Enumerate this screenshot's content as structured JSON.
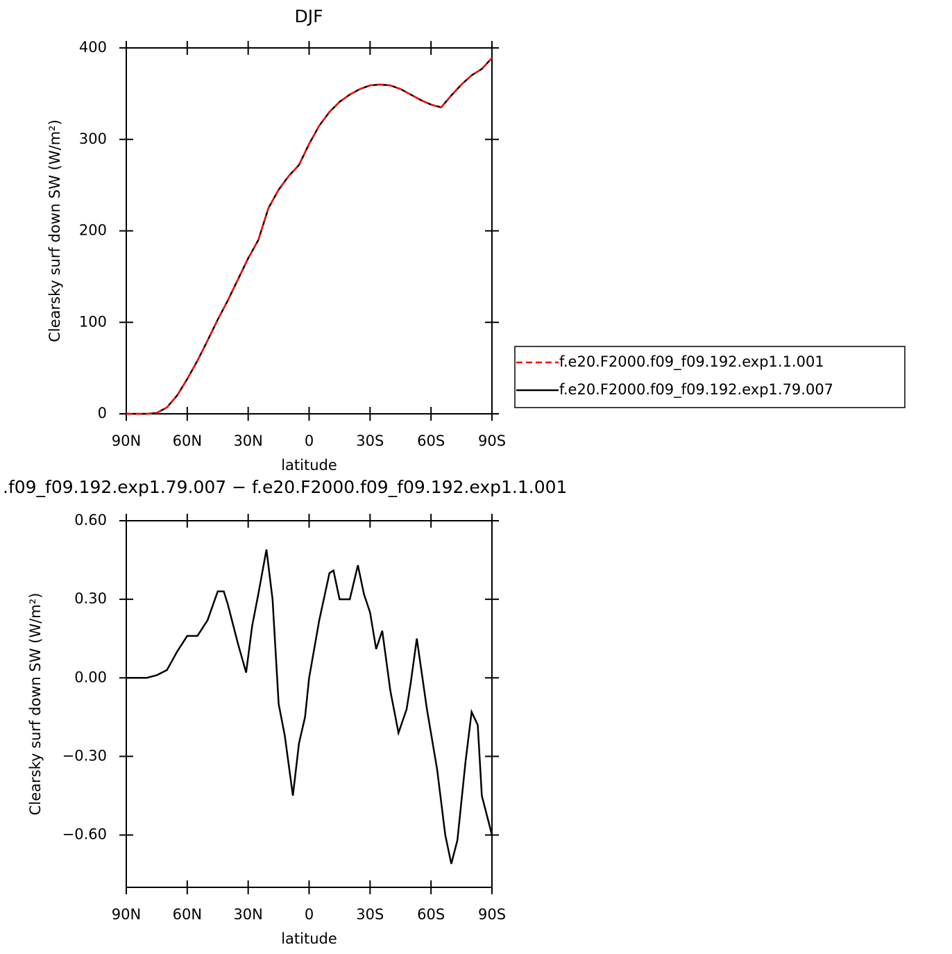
{
  "chart_data": [
    {
      "type": "line",
      "title": "DJF",
      "x_label": "latitude",
      "y_label": "Clearsky surf down SW (W/m²)",
      "x": [
        90,
        85,
        80,
        75,
        70,
        65,
        60,
        55,
        50,
        45,
        40,
        35,
        30,
        25,
        20,
        15,
        10,
        5,
        0,
        -5,
        -10,
        -15,
        -20,
        -25,
        -30,
        -35,
        -40,
        -45,
        -50,
        -55,
        -60,
        -65,
        -70,
        -75,
        -80,
        -85,
        -90
      ],
      "series": [
        {
          "name": "f.e20.F2000.f09_f09.192.exp1.1.001",
          "color": "#ff0000",
          "dashed": true,
          "values": [
            0,
            0,
            0,
            1,
            7,
            20,
            38,
            58,
            80,
            103,
            124,
            147,
            170,
            190,
            225,
            245,
            260,
            272,
            295,
            315,
            330,
            341,
            349,
            355,
            359,
            360,
            359,
            355,
            349,
            343,
            338,
            335,
            348,
            360,
            370,
            377,
            389
          ]
        },
        {
          "name": "f.e20.F2000.f09_f09.192.exp1.79.007",
          "color": "#000000",
          "dashed": false,
          "values": [
            0,
            0,
            0,
            1,
            7,
            20,
            38,
            58,
            80,
            103,
            124,
            147,
            170,
            190,
            225,
            245,
            260,
            272,
            295,
            315,
            330,
            341,
            349,
            355,
            359,
            360,
            359,
            355,
            349,
            343,
            338,
            335,
            348,
            360,
            370,
            377,
            389
          ]
        }
      ],
      "xlim": [
        90,
        -90
      ],
      "xticks": [
        {
          "value": 90,
          "label": "90N"
        },
        {
          "value": 60,
          "label": "60N"
        },
        {
          "value": 30,
          "label": "30N"
        },
        0,
        {
          "value": -30,
          "label": "30S"
        },
        {
          "value": -60,
          "label": "60S"
        },
        {
          "value": -90,
          "label": "90S"
        }
      ],
      "ylim": [
        0,
        400
      ],
      "yticks": [
        0,
        100,
        200,
        300,
        400
      ],
      "legend": "right"
    },
    {
      "type": "line",
      "title": ".f09_f09.192.exp1.79.007 − f.e20.F2000.f09_f09.192.exp1.1.001",
      "x_label": "latitude",
      "y_label": "Clearsky surf down SW (W/m²)",
      "x": [
        90,
        85,
        80,
        75,
        70,
        65,
        60,
        55,
        50,
        45,
        42,
        40,
        35,
        31,
        28,
        25,
        21,
        18,
        15,
        12,
        8,
        5,
        2,
        0,
        -5,
        -10,
        -12,
        -15,
        -20,
        -24,
        -27,
        -30,
        -33,
        -36,
        -40,
        -44,
        -48,
        -50,
        -53,
        -58,
        -63,
        -67,
        -70,
        -73,
        -77,
        -80,
        -83,
        -85,
        -90
      ],
      "series": [
        {
          "color": "#000000",
          "dashed": false,
          "values": [
            0,
            0,
            0,
            0.01,
            0.03,
            0.1,
            0.16,
            0.16,
            0.22,
            0.33,
            0.33,
            0.28,
            0.13,
            0.02,
            0.2,
            0.32,
            0.49,
            0.3,
            -0.1,
            -0.22,
            -0.45,
            -0.25,
            -0.15,
            0,
            0.22,
            0.4,
            0.41,
            0.3,
            0.3,
            0.43,
            0.32,
            0.25,
            0.11,
            0.18,
            -0.05,
            -0.21,
            -0.12,
            -0.02,
            0.15,
            -0.12,
            -0.35,
            -0.6,
            -0.71,
            -0.62,
            -0.32,
            -0.13,
            -0.18,
            -0.45,
            -0.6
          ]
        }
      ],
      "xlim": [
        90,
        -90
      ],
      "xticks": [
        {
          "value": 90,
          "label": "90N"
        },
        {
          "value": 60,
          "label": "60N"
        },
        {
          "value": 30,
          "label": "30N"
        },
        0,
        {
          "value": -30,
          "label": "30S"
        },
        {
          "value": -60,
          "label": "60S"
        },
        {
          "value": -90,
          "label": "90S"
        }
      ],
      "ylim": [
        -0.8,
        0.6
      ],
      "yticks": [
        {
          "value": 0.6,
          "label": "0.60"
        },
        {
          "value": 0.3,
          "label": "0.30"
        },
        {
          "value": 0,
          "label": "0.00"
        },
        {
          "value": -0.3,
          "label": "−0.30"
        },
        {
          "value": -0.6,
          "label": "−0.60"
        }
      ]
    }
  ]
}
